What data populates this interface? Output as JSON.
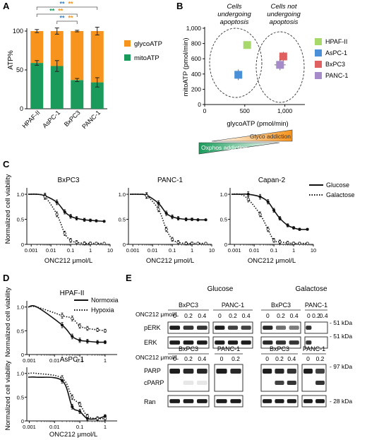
{
  "panel_labels": {
    "a": "A",
    "b": "B",
    "c": "C",
    "d": "D",
    "e": "E"
  },
  "colors": {
    "glyco": "#F7941D",
    "mito": "#1A9B5B",
    "hpaf": "#A6D96A",
    "aspc": "#4A90D9",
    "bxpc3": "#E06060",
    "panc1": "#A58BC9",
    "sig_blue": "#3B7FC4",
    "sig_orange": "#F7941D",
    "sig_green": "#1A9B5B"
  },
  "panelA": {
    "chart_data": {
      "type": "bar",
      "stacked": true,
      "categories": [
        "HPAF-II",
        "AsPC-1",
        "BxPC3",
        "PANC-1"
      ],
      "series": [
        {
          "name": "mitoATP",
          "values": [
            59,
            55,
            37,
            34
          ],
          "errors": [
            3,
            7,
            2,
            6
          ]
        },
        {
          "name": "glycoATP",
          "values": [
            41,
            45,
            63,
            66
          ],
          "errors": [
            2,
            4,
            1,
            5
          ]
        }
      ],
      "ylabel": "ATP%",
      "ylim": [
        0,
        100
      ],
      "yticks": [
        0,
        50,
        100
      ],
      "significance": [
        {
          "from": 0,
          "to": 3,
          "stars": [
            {
              "text": "**",
              "color": "sig_blue"
            },
            {
              "text": "**",
              "color": "sig_orange"
            }
          ]
        },
        {
          "from": 0,
          "to": 2,
          "stars": [
            {
              "text": "**",
              "color": "sig_green"
            },
            {
              "text": "**",
              "color": "sig_orange"
            }
          ]
        },
        {
          "from": 1,
          "to": 2,
          "stars": [
            {
              "text": "**",
              "color": "sig_blue"
            },
            {
              "text": "**",
              "color": "sig_orange"
            }
          ]
        }
      ]
    }
  },
  "panelB": {
    "chart_data": {
      "type": "scatter",
      "xlabel": "glycoATP (pmol/min)",
      "ylabel": "mitoATP (pmol/min)",
      "xlim": [
        0,
        1250
      ],
      "ylim": [
        0,
        1000
      ],
      "xticks": [
        "0",
        "500",
        "1,000"
      ],
      "xtick_values": [
        0,
        500,
        1000
      ],
      "yticks": [
        "0",
        "200",
        "400",
        "600",
        "800",
        "1,000"
      ],
      "ytick_values": [
        0,
        200,
        400,
        600,
        800,
        1000
      ],
      "points": [
        {
          "name": "HPAF-II",
          "x": 530,
          "y": 780,
          "ex": 40,
          "ey": 45,
          "color": "hpaf"
        },
        {
          "name": "AsPC-1",
          "x": 420,
          "y": 390,
          "ex": 40,
          "ey": 70,
          "color": "aspc"
        },
        {
          "name": "BxPC3",
          "x": 980,
          "y": 630,
          "ex": 50,
          "ey": 60,
          "color": "bxpc3"
        },
        {
          "name": "PANC-1",
          "x": 940,
          "y": 520,
          "ex": 70,
          "ey": 70,
          "color": "panc1"
        }
      ],
      "annotations": {
        "apoptosis": [
          "Cells",
          "undergoing",
          "apoptosis"
        ],
        "no_apoptosis": [
          "Cells not",
          "undergoing",
          "apoptosis"
        ]
      }
    },
    "gradient": {
      "glyco": "Glyco addiction",
      "oxphos": "Oxphos addiction"
    }
  },
  "panelC": {
    "ylabel": "Normalized cell viability",
    "xlabel": "ONC212 μmol/L",
    "xticks": [
      "0.001",
      "0.01",
      "0.1",
      "1",
      "10"
    ],
    "yticks": [
      "0",
      "0.5",
      "1.0"
    ],
    "legend": {
      "solid": "Glucose",
      "dotted": "Galactose"
    },
    "chart_data": [
      {
        "type": "line",
        "title": "BxPC3",
        "x": [
          0.002,
          0.005,
          0.02,
          0.05,
          0.1,
          0.2,
          0.5,
          1,
          2,
          5
        ],
        "series": [
          {
            "name": "Glucose",
            "values": [
              1.0,
              0.97,
              0.84,
              0.65,
              0.56,
              0.52,
              0.49,
              0.48,
              0.47,
              0.46
            ]
          },
          {
            "name": "Galactose",
            "values": [
              1.0,
              0.95,
              0.6,
              0.22,
              0.08,
              0.04,
              0.02,
              0.02,
              0.02,
              0.02
            ]
          }
        ]
      },
      {
        "type": "line",
        "title": "PANC-1",
        "x": [
          0.002,
          0.005,
          0.02,
          0.05,
          0.1,
          0.2,
          0.5,
          1,
          2,
          5
        ],
        "series": [
          {
            "name": "Glucose",
            "values": [
              1.0,
              0.98,
              0.82,
              0.62,
              0.55,
              0.52,
              0.5,
              0.5,
              0.49,
              0.49
            ]
          },
          {
            "name": "Galactose",
            "values": [
              1.0,
              0.97,
              0.7,
              0.3,
              0.1,
              0.04,
              0.02,
              0.02,
              0.02,
              0.02
            ]
          }
        ]
      },
      {
        "type": "line",
        "title": "Capan-2",
        "x": [
          0.002,
          0.005,
          0.02,
          0.05,
          0.1,
          0.2,
          0.5,
          1,
          2,
          5
        ],
        "series": [
          {
            "name": "Glucose",
            "values": [
              1.0,
              1.0,
              0.95,
              0.85,
              0.68,
              0.52,
              0.38,
              0.33,
              0.3,
              0.3
            ]
          },
          {
            "name": "Galactose",
            "values": [
              1.0,
              0.9,
              0.6,
              0.3,
              0.08,
              0.05,
              0.03,
              0.02,
              0.02,
              0.02
            ]
          }
        ]
      }
    ]
  },
  "panelD": {
    "ylabel": "Normalized cell viability",
    "xlabel": "ONC212 μmol/L",
    "xticks": [
      "0.001",
      "0.01",
      "0.1",
      "1"
    ],
    "legend": {
      "solid": "Normoxia",
      "dotted": "Hypoxia"
    },
    "chart_data": [
      {
        "type": "line",
        "title": "HPAF-II",
        "yticks": [
          "0",
          "0.5",
          "1.0"
        ],
        "x": [
          0.002,
          0.02,
          0.05,
          0.1,
          0.2,
          0.5,
          1
        ],
        "series": [
          {
            "name": "Normoxia",
            "values": [
              1.0,
              0.62,
              0.38,
              0.3,
              0.28,
              0.26,
              0.26
            ]
          },
          {
            "name": "Hypoxia",
            "values": [
              1.0,
              0.82,
              0.76,
              0.6,
              0.55,
              0.52,
              0.5
            ]
          }
        ]
      },
      {
        "type": "line",
        "title": "AsPC-1",
        "yticks": [
          "0",
          "0.5",
          "1.0"
        ],
        "x": [
          0.002,
          0.02,
          0.05,
          0.1,
          0.2,
          0.5,
          1
        ],
        "series": [
          {
            "name": "Normoxia",
            "values": [
              0.92,
              0.85,
              0.3,
              0.2,
              0.05,
              0.05,
              0.1
            ]
          },
          {
            "name": "Hypoxia",
            "values": [
              1.0,
              0.9,
              0.5,
              0.35,
              0.1,
              0.05,
              0.05
            ]
          }
        ]
      }
    ]
  },
  "panelE": {
    "glucose": "Glucose",
    "galactose": "Galactose",
    "onc_label": "ONC212 μmol/L",
    "top": {
      "groups": [
        {
          "cell": "BxPC3",
          "doses": [
            "0",
            "0.2",
            "0.4"
          ]
        },
        {
          "cell": "PANC-1",
          "doses": [
            "0",
            "0.2",
            "0.4"
          ]
        },
        {
          "cell": "BxPC3",
          "doses": [
            "0",
            "0.2",
            "0.4"
          ]
        },
        {
          "cell": "PANC-1",
          "doses": [
            "0",
            "0.2",
            "0.4"
          ]
        }
      ],
      "rows": [
        "pERK",
        "ERK"
      ],
      "kda": [
        "- 51 kDa",
        "- 51 kDa"
      ]
    },
    "bottom": {
      "groups": [
        {
          "cell": "BxPC3",
          "doses": [
            "0",
            "0.2",
            "0.4"
          ]
        },
        {
          "cell": "PANC-1",
          "doses": [
            "0",
            "0.2"
          ]
        },
        {
          "cell": "BxPC3",
          "doses": [
            "0",
            "0.2",
            "0.4"
          ]
        },
        {
          "cell": "PANC-1",
          "doses": [
            "0",
            "0.2"
          ]
        }
      ],
      "rows": [
        "PARP",
        "cPARP",
        "Ran"
      ],
      "kda": [
        "- 97 kDa",
        "- 28 kDa"
      ]
    }
  }
}
